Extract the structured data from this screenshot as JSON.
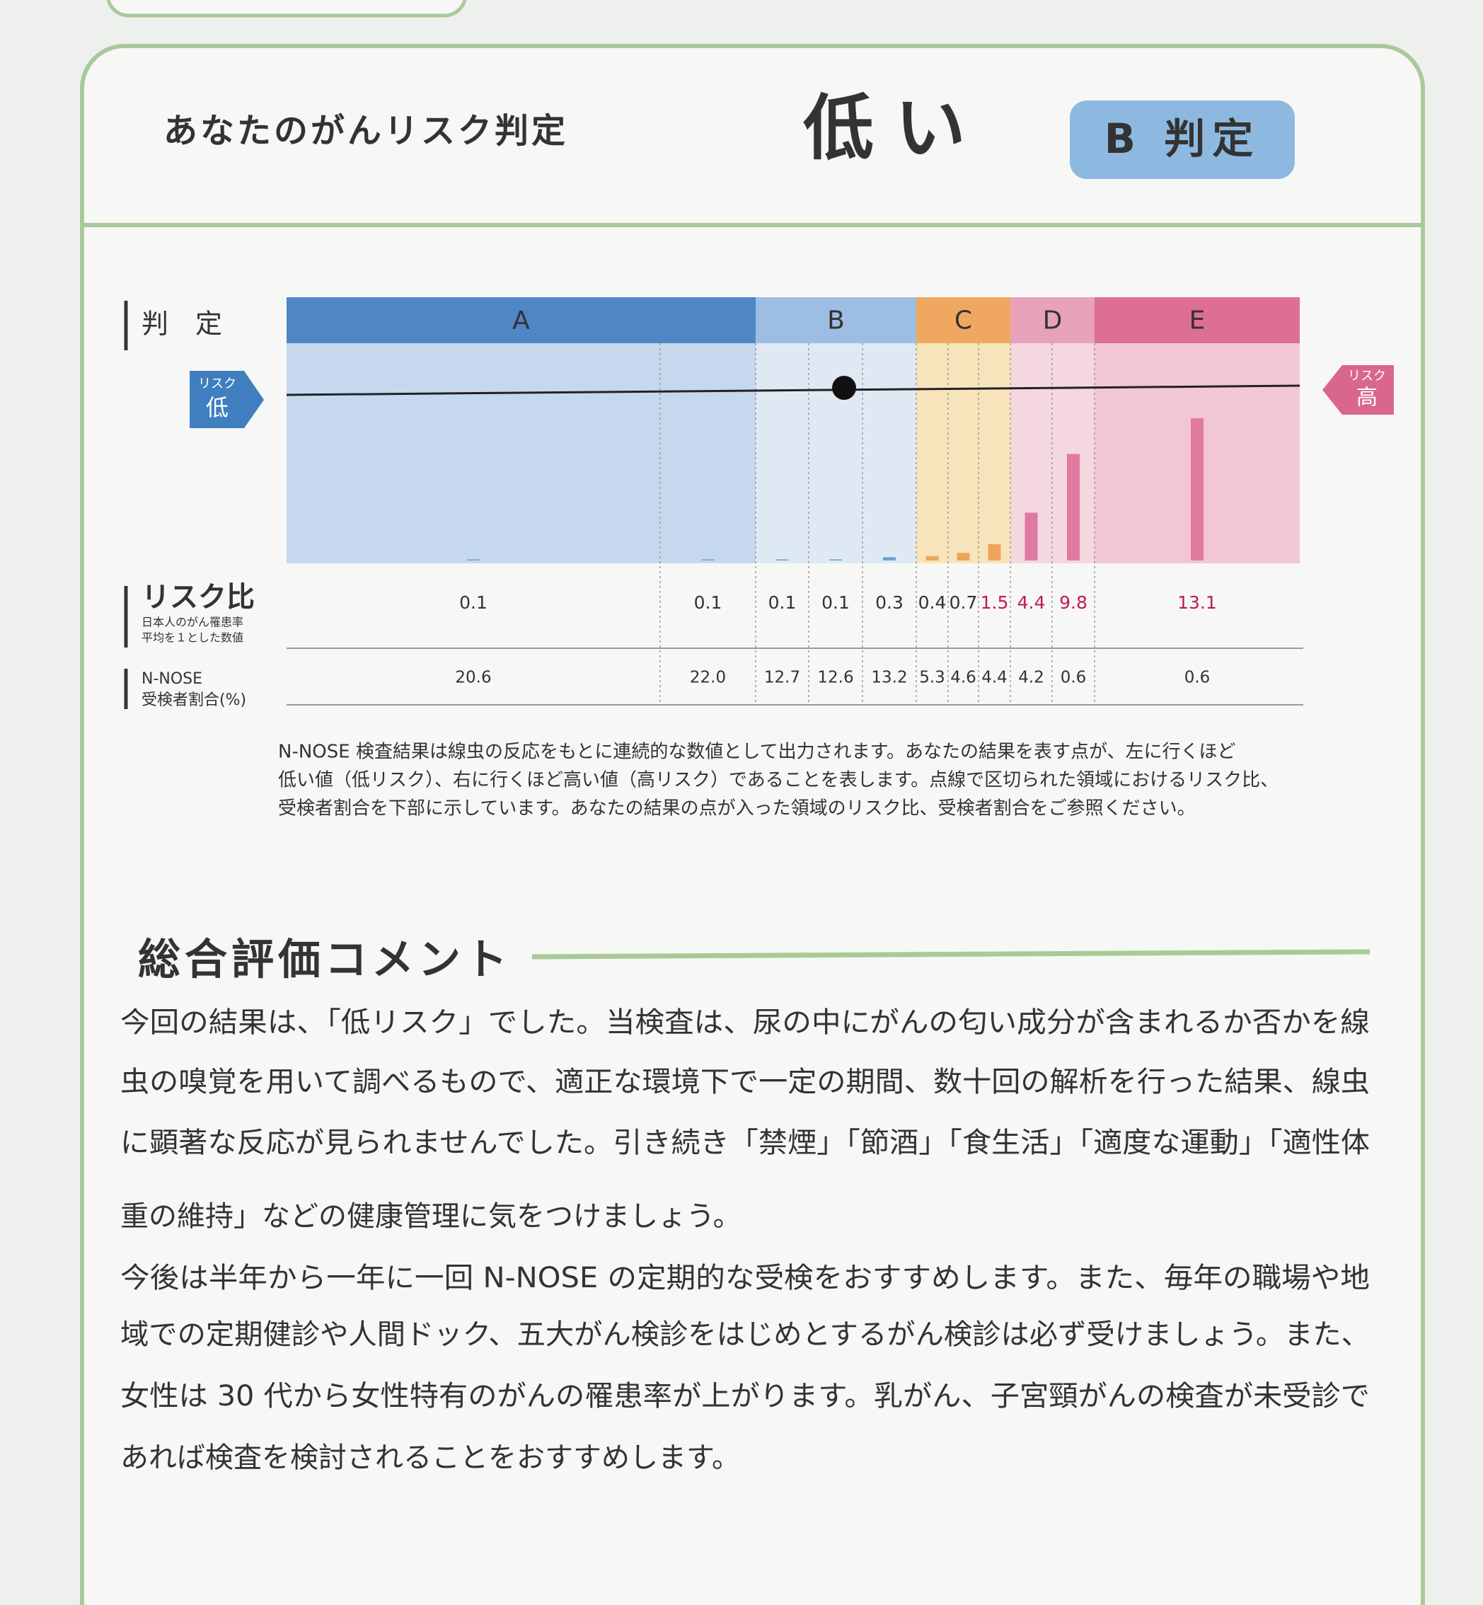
{
  "header": {
    "label": "あなたのがんリスク判定",
    "result": "低い",
    "grade": "B 判定"
  },
  "chart_data": {
    "type": "bar",
    "row_label_grade": "判　定",
    "row_label_risk": "リスク比",
    "row_label_risk_note": [
      "日本人のがん罹患率",
      "平均を１とした数値"
    ],
    "row_label_share": [
      "N-NOSE",
      "受検者割合(%)"
    ],
    "low_tag": {
      "small": "リスク",
      "big": "低"
    },
    "high_tag": {
      "small": "リスク",
      "big": "高"
    },
    "zones": [
      {
        "name": "A",
        "color": "#4f86c6",
        "bg": "#c6d8ed",
        "bar": "#6f9fd8",
        "values": [
          0.1,
          0.1
        ],
        "shares": [
          20.6,
          {
            "value": 22,
            "label": "22.0"
          }
        ]
      },
      {
        "name": "B",
        "color": "#9dbde3",
        "bg": "#dfe9f4",
        "bar": "#6f9fd8",
        "values": [
          0.1,
          0.1,
          0.3
        ],
        "shares": [
          12.7,
          12.6,
          13.2
        ]
      },
      {
        "name": "C",
        "color": "#f0a860",
        "bg": "#f8e4bb",
        "bar": "#eea55a",
        "values": [
          0.4,
          0.7,
          1.5
        ],
        "shares": [
          5.3,
          4.6,
          4.4
        ]
      },
      {
        "name": "D",
        "color": "#e7a2ba",
        "bg": "#f5d7e0",
        "bar": "#e07aa0",
        "values": [
          4.4,
          9.8
        ],
        "shares": [
          4.2,
          0.6
        ]
      },
      {
        "name": "E",
        "color": "#dc6f93",
        "bg": "#f3c6d4",
        "bar": "#e07aa0",
        "values": [
          13.1
        ],
        "shares": [
          0.6
        ]
      }
    ]
  },
  "description": [
    "N-NOSE 検査結果は線虫の反応をもとに連続的な数値として出力されます。あなたの結果を表す点が、左に行くほど",
    "低い値（低リスク）、右に行くほど高い値（高リスク）であることを表します。点線で区切られた領域におけるリスク比、",
    "受検者割合を下部に示しています。あなたの結果の点が入った領域のリスク比、受検者割合をご参照ください。"
  ],
  "comment": {
    "title": "総合評価コメント",
    "paragraphs": [
      [
        "今回の結果は、「低リスク」でした。当検査は、尿の中にがんの匂い成分が含まれるか否かを線",
        "虫の嗅覚を用いて調べるもので、適正な環境下で一定の期間、数十回の解析を行った結果、線虫",
        "に顕著な反応が見られませんでした。引き続き「禁煙」「節酒」「食生活」「適度な運動」「適性体",
        "重の維持」などの健康管理に気をつけましょう。"
      ],
      [
        "今後は半年から一年に一回 N-NOSE の定期的な受検をおすすめします。また、毎年の職場や地",
        "域での定期健診や人間ドック、五大がん検診をはじめとするがん検診は必ず受けましょう。また、",
        "女性は 30 代から女性特有のがんの罹患率が上がります。乳がん、子宮頸がんの検査が未受診で",
        "あれば検査を検討されることをおすすめします。"
      ]
    ]
  }
}
